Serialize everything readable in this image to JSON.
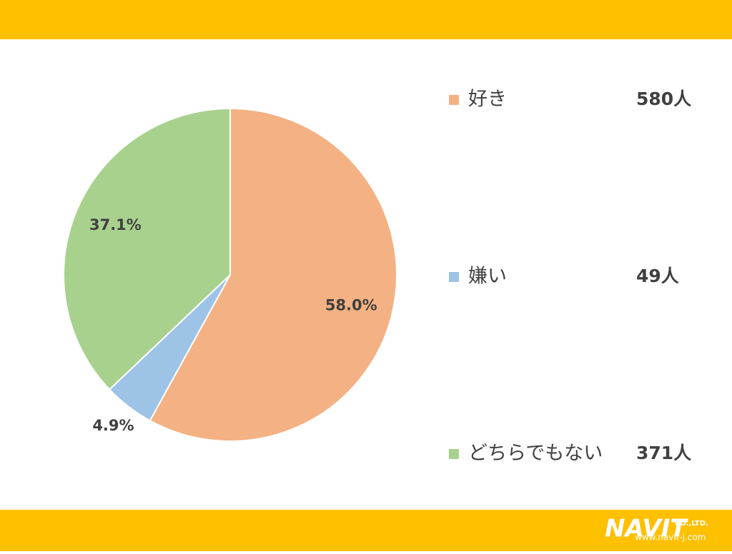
{
  "chart_data": {
    "type": "pie",
    "categories": [
      "好き",
      "嫌い",
      "どちらでもない"
    ],
    "values": [
      58.0,
      4.9,
      37.1
    ],
    "value_labels": [
      "58.0%",
      "4.9%",
      "37.1%"
    ],
    "colors": [
      "#F4B183",
      "#9DC3E6",
      "#A9D18E"
    ],
    "count_labels": [
      "580人",
      "49人",
      "371人"
    ]
  },
  "footer": {
    "logo": "NAVIT",
    "company": "CO.,LTD.",
    "url": "www.navit-j.com"
  }
}
